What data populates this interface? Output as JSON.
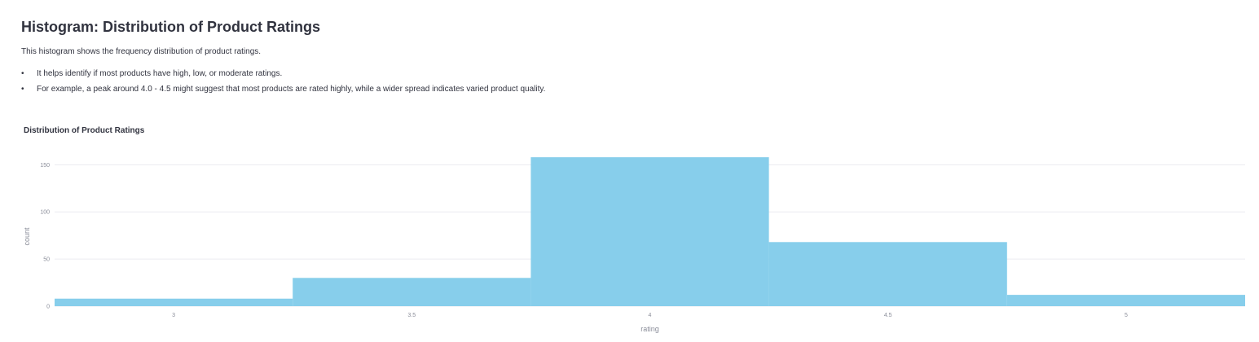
{
  "header": {
    "title": "Histogram: Distribution of Product Ratings",
    "intro": "This histogram shows the frequency distribution of product ratings.",
    "bullets": [
      "It helps identify if most products have high, low, or moderate ratings.",
      "For example, a peak around 4.0 - 4.5 might suggest that most products are rated highly, while a wider spread indicates varied product quality."
    ]
  },
  "chart_data": {
    "type": "bar",
    "title": "Distribution of Product Ratings",
    "xlabel": "rating",
    "ylabel": "count",
    "bin_width": 0.5,
    "bins": [
      {
        "start": 2.75,
        "end": 3.25,
        "count": 8
      },
      {
        "start": 3.25,
        "end": 3.75,
        "count": 30
      },
      {
        "start": 3.75,
        "end": 4.25,
        "count": 158
      },
      {
        "start": 4.25,
        "end": 4.75,
        "count": 68
      },
      {
        "start": 4.75,
        "end": 5.25,
        "count": 12
      }
    ],
    "xlim": [
      2.75,
      5.25
    ],
    "ylim": [
      0,
      165
    ],
    "x_ticks": [
      3,
      3.5,
      4,
      4.5,
      5
    ],
    "x_tick_labels": [
      "3",
      "3.5",
      "4",
      "4.5",
      "5"
    ],
    "y_ticks": [
      0,
      50,
      100,
      150
    ],
    "y_tick_labels": [
      "0",
      "50",
      "100",
      "150"
    ],
    "grid": true,
    "bar_color": "#87ceeb"
  }
}
